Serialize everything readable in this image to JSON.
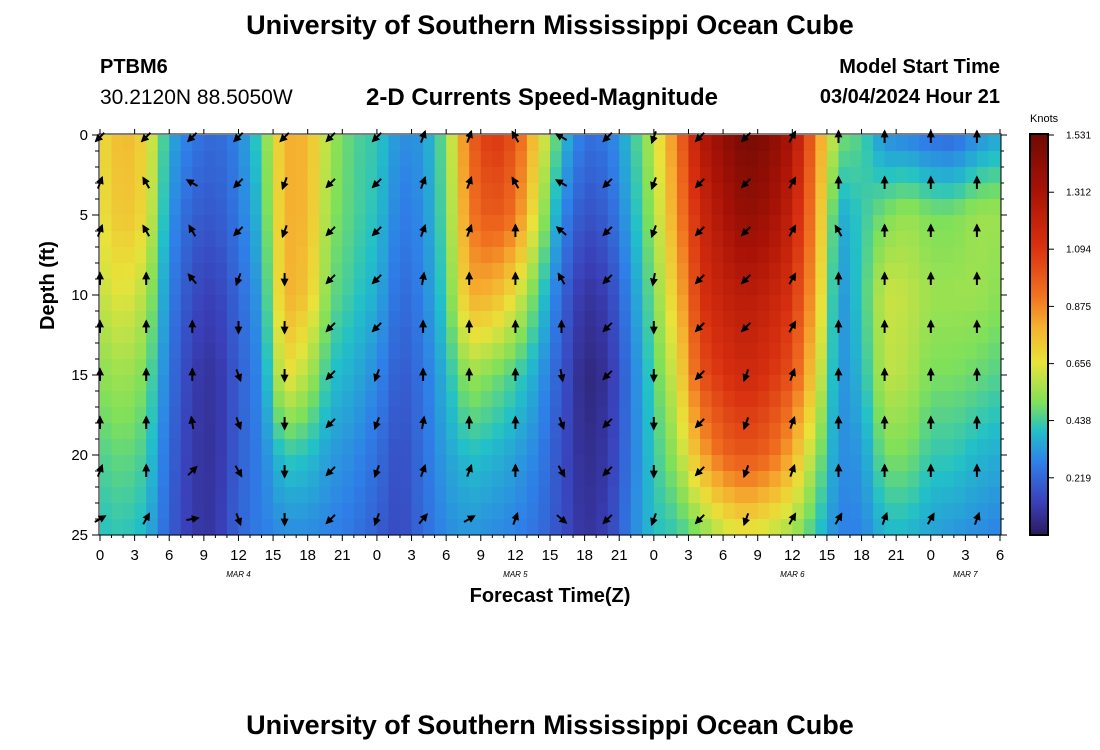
{
  "header": {
    "title": "University of Southern Mississippi Ocean Cube",
    "station_id": "PTBM6",
    "coordinates": "30.2120N  88.5050W",
    "product": "2-D Currents Speed-Magnitude",
    "model_start_label": "Model Start Time",
    "model_start_value": "03/04/2024 Hour 21"
  },
  "footer": {
    "title": "University of Southern Mississippi Ocean Cube"
  },
  "colorbar": {
    "units": "Knots",
    "ticks": [
      0.219,
      0.438,
      0.656,
      0.875,
      1.094,
      1.312,
      1.531
    ],
    "tick_labels": [
      "0.219",
      "0.438",
      "0.656",
      "0.875",
      "1.094",
      "1.312",
      "1.531"
    ],
    "range": [
      0,
      1.531
    ]
  },
  "chart_data": {
    "type": "heatmap",
    "title": "2-D Currents Speed-Magnitude",
    "xlabel": "Forecast Time(Z)",
    "ylabel": "Depth (ft)",
    "x_hours_range": [
      0,
      78
    ],
    "x_tick_hours": [
      0,
      3,
      6,
      9,
      12,
      15,
      18,
      21,
      24,
      27,
      30,
      33,
      36,
      39,
      42,
      45,
      48,
      51,
      54,
      57,
      60,
      63,
      66,
      69,
      72,
      75,
      78
    ],
    "x_tick_labels": [
      "0",
      "3",
      "6",
      "9",
      "12",
      "15",
      "18",
      "21",
      "0",
      "3",
      "6",
      "9",
      "12",
      "15",
      "18",
      "21",
      "0",
      "3",
      "6",
      "9",
      "12",
      "15",
      "18",
      "21",
      "0",
      "3",
      "6"
    ],
    "date_labels": [
      {
        "hour": 12,
        "text": "MAR 4"
      },
      {
        "hour": 36,
        "text": "MAR 5"
      },
      {
        "hour": 60,
        "text": "MAR 6"
      },
      {
        "hour": 75,
        "text": "MAR 7"
      }
    ],
    "y_range_ft": [
      0,
      25
    ],
    "y_ticks": [
      0,
      5,
      10,
      15,
      20,
      25
    ],
    "y_tick_labels": [
      "0",
      "5",
      "10",
      "15",
      "20",
      "25"
    ],
    "speed_knots_by_time_depth": {
      "depths_ft": [
        0,
        5,
        10,
        15,
        20,
        25
      ],
      "profiles": [
        {
          "hour": 0,
          "speeds": [
            0.68,
            0.66,
            0.6,
            0.52,
            0.45,
            0.4
          ]
        },
        {
          "hour": 2,
          "speeds": [
            0.78,
            0.75,
            0.66,
            0.56,
            0.48,
            0.42
          ]
        },
        {
          "hour": 4,
          "speeds": [
            0.7,
            0.68,
            0.58,
            0.5,
            0.44,
            0.38
          ]
        },
        {
          "hour": 6,
          "speeds": [
            0.36,
            0.32,
            0.28,
            0.25,
            0.22,
            0.2
          ]
        },
        {
          "hour": 8,
          "speeds": [
            0.26,
            0.2,
            0.15,
            0.11,
            0.1,
            0.1
          ]
        },
        {
          "hour": 10,
          "speeds": [
            0.22,
            0.18,
            0.12,
            0.08,
            0.08,
            0.09
          ]
        },
        {
          "hour": 12,
          "speeds": [
            0.28,
            0.26,
            0.22,
            0.2,
            0.2,
            0.22
          ]
        },
        {
          "hour": 14,
          "speeds": [
            0.45,
            0.4,
            0.34,
            0.3,
            0.28,
            0.27
          ]
        },
        {
          "hour": 16,
          "speeds": [
            0.8,
            0.8,
            0.8,
            0.68,
            0.42,
            0.3
          ]
        },
        {
          "hour": 18,
          "speeds": [
            0.78,
            0.78,
            0.74,
            0.58,
            0.4,
            0.3
          ]
        },
        {
          "hour": 20,
          "speeds": [
            0.55,
            0.52,
            0.48,
            0.4,
            0.33,
            0.28
          ]
        },
        {
          "hour": 22,
          "speeds": [
            0.45,
            0.45,
            0.42,
            0.36,
            0.3,
            0.25
          ]
        },
        {
          "hour": 24,
          "speeds": [
            0.42,
            0.4,
            0.36,
            0.3,
            0.24,
            0.2
          ]
        },
        {
          "hour": 26,
          "speeds": [
            0.3,
            0.26,
            0.22,
            0.18,
            0.15,
            0.14
          ]
        },
        {
          "hour": 28,
          "speeds": [
            0.32,
            0.3,
            0.28,
            0.25,
            0.24,
            0.23
          ]
        },
        {
          "hour": 30,
          "speeds": [
            0.5,
            0.48,
            0.44,
            0.38,
            0.34,
            0.3
          ]
        },
        {
          "hour": 32,
          "speeds": [
            0.95,
            0.9,
            0.8,
            0.55,
            0.4,
            0.32
          ]
        },
        {
          "hour": 34,
          "speeds": [
            1.1,
            1.0,
            0.78,
            0.5,
            0.38,
            0.3
          ]
        },
        {
          "hour": 36,
          "speeds": [
            1.0,
            0.92,
            0.66,
            0.44,
            0.34,
            0.28
          ]
        },
        {
          "hour": 38,
          "speeds": [
            0.7,
            0.6,
            0.45,
            0.34,
            0.28,
            0.24
          ]
        },
        {
          "hour": 40,
          "speeds": [
            0.4,
            0.3,
            0.22,
            0.18,
            0.16,
            0.16
          ]
        },
        {
          "hour": 42,
          "speeds": [
            0.24,
            0.16,
            0.08,
            0.04,
            0.06,
            0.08
          ]
        },
        {
          "hour": 44,
          "speeds": [
            0.26,
            0.2,
            0.12,
            0.08,
            0.1,
            0.12
          ]
        },
        {
          "hour": 46,
          "speeds": [
            0.4,
            0.36,
            0.3,
            0.26,
            0.26,
            0.28
          ]
        },
        {
          "hour": 48,
          "speeds": [
            0.6,
            0.55,
            0.5,
            0.45,
            0.42,
            0.4
          ]
        },
        {
          "hour": 50,
          "speeds": [
            0.9,
            0.85,
            0.75,
            0.65,
            0.55,
            0.42
          ]
        },
        {
          "hour": 52,
          "speeds": [
            1.25,
            1.15,
            1.1,
            1.0,
            0.8,
            0.5
          ]
        },
        {
          "hour": 54,
          "speeds": [
            1.4,
            1.3,
            1.2,
            1.1,
            0.95,
            0.6
          ]
        },
        {
          "hour": 56,
          "speeds": [
            1.5,
            1.4,
            1.25,
            1.15,
            1.0,
            0.65
          ]
        },
        {
          "hour": 58,
          "speeds": [
            1.45,
            1.35,
            1.2,
            1.1,
            0.95,
            0.6
          ]
        },
        {
          "hour": 60,
          "speeds": [
            1.3,
            1.2,
            1.1,
            1.0,
            0.8,
            0.55
          ]
        },
        {
          "hour": 62,
          "speeds": [
            0.9,
            0.85,
            0.8,
            0.7,
            0.55,
            0.42
          ]
        },
        {
          "hour": 64,
          "speeds": [
            0.5,
            0.35,
            0.3,
            0.3,
            0.3,
            0.28
          ]
        },
        {
          "hour": 66,
          "speeds": [
            0.45,
            0.42,
            0.42,
            0.38,
            0.32,
            0.28
          ]
        },
        {
          "hour": 68,
          "speeds": [
            0.3,
            0.5,
            0.62,
            0.6,
            0.5,
            0.38
          ]
        },
        {
          "hour": 70,
          "speeds": [
            0.28,
            0.55,
            0.6,
            0.58,
            0.5,
            0.38
          ]
        },
        {
          "hour": 72,
          "speeds": [
            0.24,
            0.5,
            0.55,
            0.5,
            0.42,
            0.34
          ]
        },
        {
          "hour": 74,
          "speeds": [
            0.22,
            0.5,
            0.55,
            0.5,
            0.42,
            0.32
          ]
        },
        {
          "hour": 76,
          "speeds": [
            0.3,
            0.55,
            0.55,
            0.48,
            0.38,
            0.3
          ]
        },
        {
          "hour": 78,
          "speeds": [
            0.35,
            0.55,
            0.52,
            0.45,
            0.36,
            0.28
          ]
        }
      ]
    },
    "vectors": {
      "depths_ft": [
        0,
        3,
        6,
        9,
        12,
        15,
        18,
        21,
        24
      ],
      "columns": [
        {
          "hour": 0,
          "directions_deg": [
            225,
            20,
            20,
            0,
            0,
            0,
            0,
            20,
            60
          ]
        },
        {
          "hour": 4,
          "directions_deg": [
            225,
            330,
            330,
            0,
            0,
            0,
            0,
            0,
            30
          ]
        },
        {
          "hour": 8,
          "directions_deg": [
            225,
            300,
            330,
            320,
            0,
            0,
            350,
            45,
            80
          ]
        },
        {
          "hour": 12,
          "directions_deg": [
            225,
            225,
            225,
            200,
            180,
            160,
            160,
            150,
            160
          ]
        },
        {
          "hour": 16,
          "directions_deg": [
            225,
            200,
            200,
            180,
            180,
            180,
            180,
            180,
            180
          ]
        },
        {
          "hour": 20,
          "directions_deg": [
            225,
            225,
            225,
            225,
            225,
            225,
            225,
            225,
            225
          ]
        },
        {
          "hour": 24,
          "directions_deg": [
            225,
            225,
            225,
            225,
            225,
            200,
            200,
            200,
            200
          ]
        },
        {
          "hour": 28,
          "directions_deg": [
            20,
            20,
            20,
            10,
            0,
            0,
            10,
            20,
            40
          ]
        },
        {
          "hour": 32,
          "directions_deg": [
            20,
            20,
            20,
            0,
            0,
            0,
            0,
            20,
            60
          ]
        },
        {
          "hour": 36,
          "directions_deg": [
            330,
            330,
            0,
            0,
            0,
            0,
            0,
            0,
            20
          ]
        },
        {
          "hour": 40,
          "directions_deg": [
            300,
            300,
            310,
            330,
            0,
            170,
            160,
            150,
            130
          ]
        },
        {
          "hour": 44,
          "directions_deg": [
            225,
            225,
            225,
            225,
            225,
            225,
            225,
            225,
            225
          ]
        },
        {
          "hour": 48,
          "directions_deg": [
            200,
            200,
            200,
            190,
            180,
            180,
            180,
            180,
            200
          ]
        },
        {
          "hour": 52,
          "directions_deg": [
            225,
            225,
            225,
            225,
            225,
            225,
            225,
            225,
            225
          ]
        },
        {
          "hour": 56,
          "directions_deg": [
            225,
            225,
            225,
            225,
            225,
            200,
            200,
            200,
            200
          ]
        },
        {
          "hour": 60,
          "directions_deg": [
            30,
            30,
            30,
            30,
            30,
            20,
            20,
            20,
            30
          ]
        },
        {
          "hour": 64,
          "directions_deg": [
            0,
            0,
            330,
            0,
            0,
            0,
            0,
            0,
            30
          ]
        },
        {
          "hour": 68,
          "directions_deg": [
            0,
            0,
            0,
            0,
            0,
            0,
            0,
            0,
            20
          ]
        },
        {
          "hour": 72,
          "directions_deg": [
            0,
            0,
            0,
            0,
            0,
            0,
            0,
            0,
            30
          ]
        },
        {
          "hour": 76,
          "directions_deg": [
            0,
            0,
            0,
            0,
            0,
            0,
            0,
            0,
            20
          ]
        }
      ]
    }
  }
}
